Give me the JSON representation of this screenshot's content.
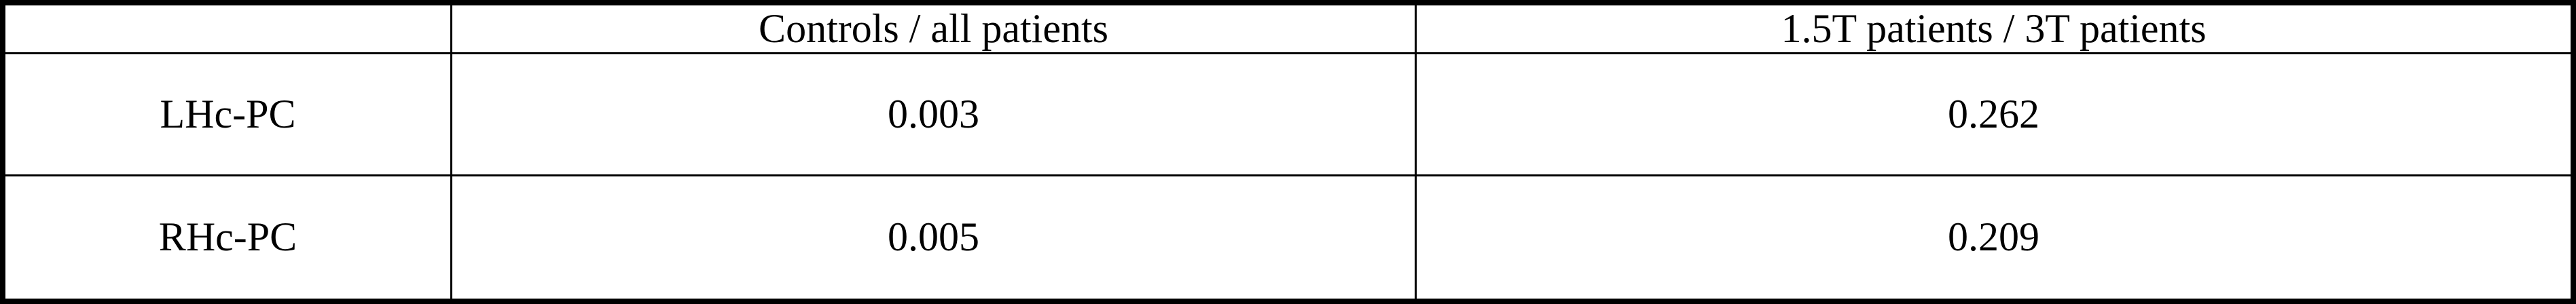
{
  "table": {
    "corner_label": "",
    "column_headers": [
      "Controls / all patients",
      "1.5T patients / 3T patients"
    ],
    "rows": [
      {
        "label": "LHc-PC",
        "values": [
          "0.003",
          "0.262"
        ]
      },
      {
        "label": "RHc-PC",
        "values": [
          "0.005",
          "0.209"
        ]
      }
    ]
  },
  "chart_data": {
    "type": "table",
    "columns": [
      "",
      "Controls / all patients",
      "1.5T patients / 3T patients"
    ],
    "rows": [
      [
        "LHc-PC",
        0.003,
        0.262
      ],
      [
        "RHc-PC",
        0.005,
        0.209
      ]
    ]
  },
  "colors": {
    "border": "#000000",
    "background": "#ffffff",
    "text": "#000000"
  }
}
